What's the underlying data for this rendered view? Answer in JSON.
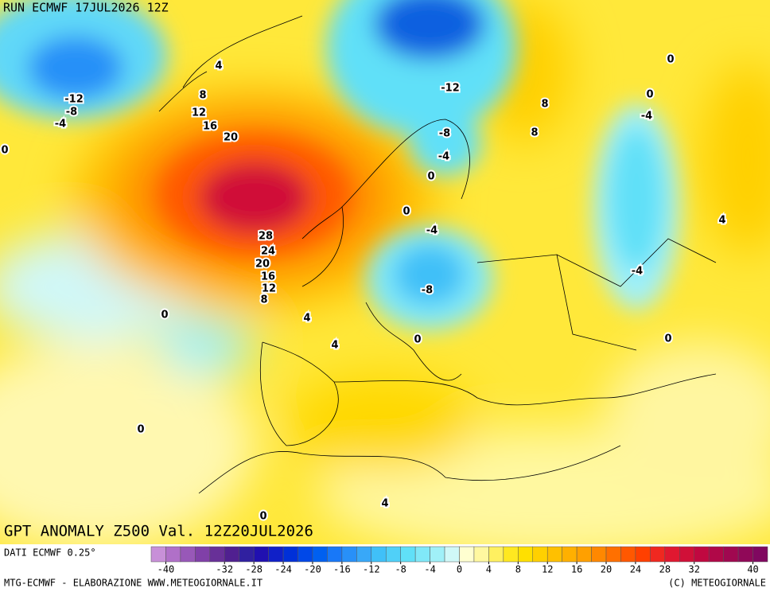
{
  "header": {
    "run": "RUN ECMWF 17JUL2026 12Z",
    "title": "GPT ANOMALY Z500 Val. 12Z20JUL2026"
  },
  "contour_labels": [
    4,
    -12,
    -8,
    -4,
    8,
    12,
    16,
    20,
    0,
    -12,
    8,
    8,
    -8,
    -4,
    0,
    0,
    -4,
    28,
    24,
    20,
    16,
    12,
    8,
    -8,
    0,
    0,
    -4,
    4,
    -4,
    0,
    4,
    4,
    0,
    0,
    0,
    4,
    0
  ],
  "colorbar": {
    "source": "DATI ECMWF 0.25°",
    "range": [
      -42,
      42
    ],
    "colors": [
      "#c890d8",
      "#b070c8",
      "#9858b8",
      "#8040a8",
      "#683098",
      "#502090",
      "#3020a0",
      "#2010b0",
      "#1020c8",
      "#0030d8",
      "#0048e8",
      "#0060f0",
      "#1878f8",
      "#2890f8",
      "#38a8f8",
      "#40c0f8",
      "#50d0f8",
      "#60e0f8",
      "#80e8f8",
      "#a0f0f8",
      "#d0f8f8",
      "#ffffd0",
      "#fff8a0",
      "#fff060",
      "#ffe820",
      "#ffe000",
      "#ffd000",
      "#ffc000",
      "#ffb000",
      "#ffa000",
      "#ff8800",
      "#ff7000",
      "#ff5800",
      "#ff4000",
      "#f02820",
      "#e01830",
      "#d01038",
      "#c00840",
      "#b00848",
      "#a00850",
      "#900858",
      "#800860"
    ],
    "ticks": [
      -40,
      -32,
      -28,
      -24,
      -20,
      -16,
      -12,
      -8,
      -4,
      0,
      4,
      8,
      12,
      16,
      20,
      24,
      28,
      32,
      40
    ]
  },
  "footer": {
    "credit": "MTG-ECMWF - ELABORAZIONE WWW.METEOGIORNALE.IT",
    "copyright": "(C) METEOGIORNALE"
  }
}
